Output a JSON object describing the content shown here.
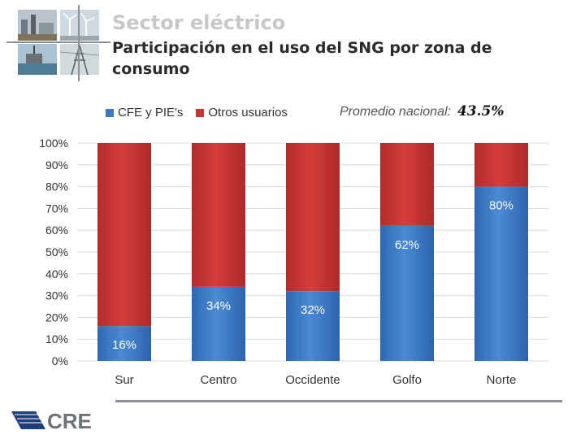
{
  "header": {
    "section_title": "Sector eléctrico",
    "subtitle": "Participación en el uso del SNG por zona de consumo"
  },
  "promedio": {
    "label": "Promedio nacional:",
    "value": "43.5%"
  },
  "legend": [
    {
      "name": "CFE y PIE's",
      "color": "#3a78c8"
    },
    {
      "name": "Otros usuarios",
      "color": "#c73434"
    }
  ],
  "logo": {
    "text": "CRE"
  },
  "chart_data": {
    "type": "bar",
    "stacked": true,
    "categories": [
      "Sur",
      "Centro",
      "Occidente",
      "Golfo",
      "Norte"
    ],
    "series": [
      {
        "name": "CFE y PIE's",
        "values": [
          16,
          34,
          32,
          62,
          80
        ],
        "labels": [
          "16%",
          "34%",
          "32%",
          "62%",
          "80%"
        ],
        "color": "#3a78c8"
      },
      {
        "name": "Otros usuarios",
        "values": [
          84,
          66,
          68,
          38,
          20
        ],
        "color": "#c73434"
      }
    ],
    "ylim": [
      0,
      100
    ],
    "yticks": [
      "0%",
      "10%",
      "20%",
      "30%",
      "40%",
      "50%",
      "60%",
      "70%",
      "80%",
      "90%",
      "100%"
    ],
    "grid": true,
    "legend_position": "top"
  }
}
